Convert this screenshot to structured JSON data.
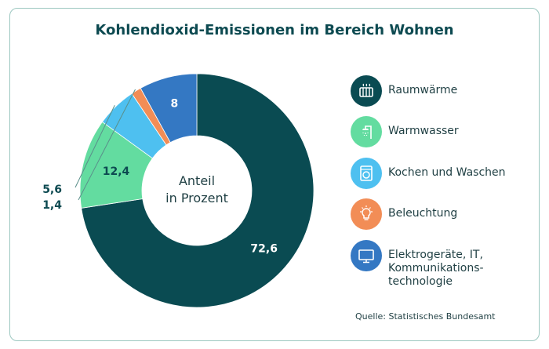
{
  "chart_data": {
    "type": "pie",
    "title": "Kohlendioxid-Emissionen im Bereich Wohnen",
    "center_label": "Anteil\nin Prozent",
    "slices": [
      {
        "name": "Raumwärme",
        "value": 72.6,
        "label": "72,6",
        "color": "#0a4b52",
        "icon": "radiator-icon"
      },
      {
        "name": "Warmwasser",
        "value": 12.4,
        "label": "12,4",
        "color": "#63dca0",
        "icon": "shower-icon"
      },
      {
        "name": "Kochen und Waschen",
        "value": 5.6,
        "label": "5,6",
        "color": "#4ec0f0",
        "icon": "washing-machine-icon"
      },
      {
        "name": "Beleuchtung",
        "value": 1.4,
        "label": "1,4",
        "color": "#f28d56",
        "icon": "lightbulb-icon"
      },
      {
        "name": "Elektrogeräte, IT,\nKommunikations-\ntechnologie",
        "value": 8,
        "label": "8",
        "color": "#3478c3",
        "icon": "monitor-icon"
      }
    ],
    "legend_order": [
      0,
      1,
      2,
      3,
      4
    ],
    "legend_position": "right"
  },
  "source": "Quelle: Statistisches Bundesamt"
}
